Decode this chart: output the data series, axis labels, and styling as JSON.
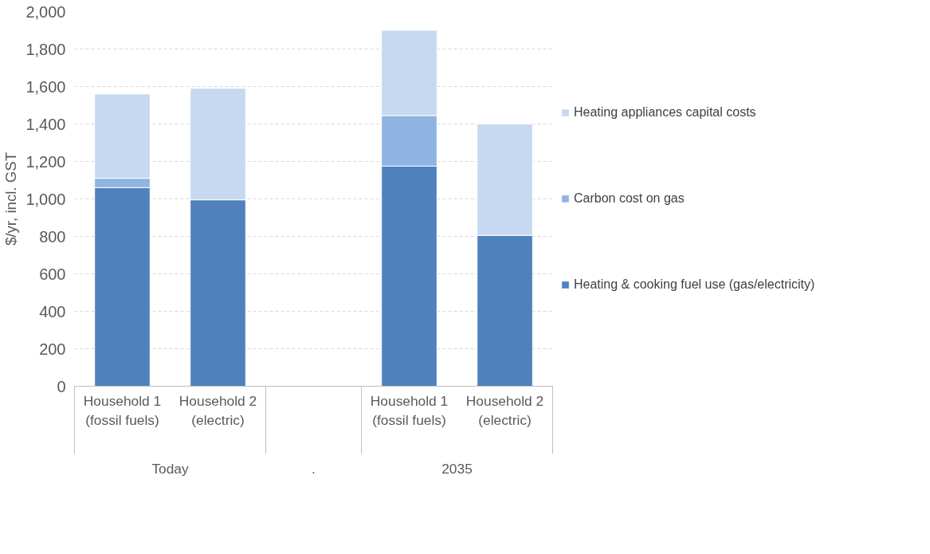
{
  "chart_data": {
    "type": "bar",
    "stacked": true,
    "ylabel": "$/yr, incl. GST",
    "categories": [
      "Household 1\n(fossil fuels)",
      "Household 2\n(electric)",
      null,
      "Household 1\n(fossil fuels)",
      "Household 2\n(electric)"
    ],
    "annotations": [
      "Today",
      ".",
      "2035"
    ],
    "series": [
      {
        "name": "Heating & cooking fuel use (gas/electricity)",
        "color": "#4f81bd",
        "values": [
          1060,
          995,
          null,
          1175,
          805
        ]
      },
      {
        "name": "Carbon cost on gas",
        "color": "#8eb4e3",
        "values": [
          50,
          null,
          null,
          270,
          null
        ]
      },
      {
        "name": "Heating appliances capital costs",
        "color": "#c6d9f1",
        "values": [
          450,
          595,
          null,
          455,
          595
        ]
      }
    ],
    "ylim": [
      0,
      2000
    ],
    "yticks": [
      {
        "value": 0,
        "label": "0"
      },
      {
        "value": 200,
        "label": "200"
      },
      {
        "value": 400,
        "label": "400"
      },
      {
        "value": 600,
        "label": "600"
      },
      {
        "value": 800,
        "label": "800"
      },
      {
        "value": 1000,
        "label": "1,000"
      },
      {
        "value": 1200,
        "label": "1,200"
      },
      {
        "value": 1400,
        "label": "1,400"
      },
      {
        "value": 1600,
        "label": "1,600"
      },
      {
        "value": 1800,
        "label": "1,800"
      },
      {
        "value": 2000,
        "label": "2,000"
      }
    ],
    "grid": "y",
    "legend": "right"
  }
}
